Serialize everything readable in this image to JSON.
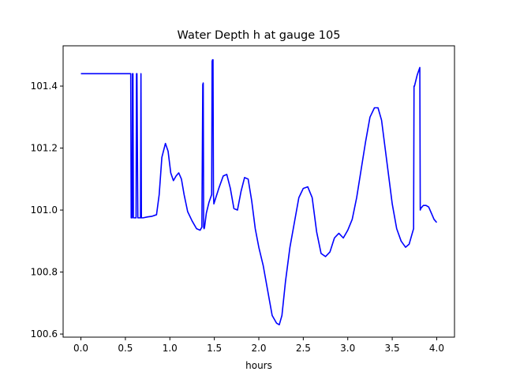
{
  "chart_data": {
    "type": "line",
    "title": "Water Depth h at gauge 105",
    "xlabel": "hours",
    "ylabel": "",
    "xlim": [
      -0.2,
      4.2
    ],
    "ylim": [
      100.59,
      101.53
    ],
    "xticks": [
      0.0,
      0.5,
      1.0,
      1.5,
      2.0,
      2.5,
      3.0,
      3.5,
      4.0
    ],
    "xtick_labels": [
      "0.0",
      "0.5",
      "1.0",
      "1.5",
      "2.0",
      "2.5",
      "3.0",
      "3.5",
      "4.0"
    ],
    "yticks": [
      100.6,
      100.8,
      101.0,
      101.2,
      101.4
    ],
    "ytick_labels": [
      "100.6",
      "100.8",
      "101.0",
      "101.2",
      "101.4"
    ],
    "grid": false,
    "line_color": "#0000ff",
    "series": [
      {
        "x": [
          0.0,
          0.3,
          0.56,
          0.565,
          0.575,
          0.58,
          0.585,
          0.59,
          0.6,
          0.62,
          0.625,
          0.63,
          0.64,
          0.67,
          0.675,
          0.68,
          0.7,
          0.75,
          0.8,
          0.85,
          0.88,
          0.91,
          0.95,
          0.98,
          1.01,
          1.04,
          1.07,
          1.1,
          1.13,
          1.16,
          1.2,
          1.25,
          1.3,
          1.34,
          1.36,
          1.37,
          1.375,
          1.38,
          1.385,
          1.39,
          1.41,
          1.44,
          1.47,
          1.475,
          1.48,
          1.485,
          1.49,
          1.495,
          1.5,
          1.55,
          1.6,
          1.64,
          1.68,
          1.72,
          1.76,
          1.8,
          1.84,
          1.88,
          1.92,
          1.96,
          2.0,
          2.05,
          2.1,
          2.15,
          2.2,
          2.23,
          2.26,
          2.3,
          2.35,
          2.4,
          2.45,
          2.5,
          2.55,
          2.6,
          2.65,
          2.7,
          2.75,
          2.8,
          2.85,
          2.9,
          2.95,
          3.0,
          3.05,
          3.1,
          3.15,
          3.2,
          3.25,
          3.3,
          3.34,
          3.38,
          3.42,
          3.46,
          3.5,
          3.55,
          3.6,
          3.65,
          3.69,
          3.72,
          3.74,
          3.745,
          3.75,
          3.78,
          3.81,
          3.815,
          3.82,
          3.85,
          3.88,
          3.91,
          3.94,
          3.97,
          4.0
        ],
        "y": [
          101.44,
          101.44,
          101.44,
          100.975,
          100.975,
          101.44,
          101.44,
          100.975,
          100.975,
          100.975,
          101.44,
          101.44,
          100.975,
          100.975,
          101.44,
          100.975,
          100.975,
          100.978,
          100.98,
          100.985,
          101.05,
          101.17,
          101.215,
          101.19,
          101.12,
          101.095,
          101.11,
          101.12,
          101.1,
          101.05,
          100.995,
          100.965,
          100.94,
          100.935,
          100.945,
          101.405,
          101.41,
          100.945,
          100.94,
          100.945,
          100.99,
          101.025,
          101.05,
          101.48,
          101.485,
          101.485,
          101.05,
          101.02,
          101.025,
          101.07,
          101.11,
          101.115,
          101.07,
          101.005,
          101.0,
          101.06,
          101.105,
          101.1,
          101.03,
          100.94,
          100.88,
          100.82,
          100.74,
          100.66,
          100.635,
          100.63,
          100.66,
          100.77,
          100.88,
          100.96,
          101.04,
          101.07,
          101.075,
          101.04,
          100.93,
          100.86,
          100.85,
          100.865,
          100.91,
          100.925,
          100.91,
          100.935,
          100.97,
          101.04,
          101.13,
          101.22,
          101.3,
          101.33,
          101.33,
          101.29,
          101.2,
          101.11,
          101.02,
          100.94,
          100.9,
          100.88,
          100.89,
          100.92,
          100.94,
          101.4,
          101.4,
          101.435,
          101.46,
          101.0,
          101.005,
          101.015,
          101.015,
          101.01,
          100.99,
          100.97,
          100.96
        ]
      }
    ]
  }
}
